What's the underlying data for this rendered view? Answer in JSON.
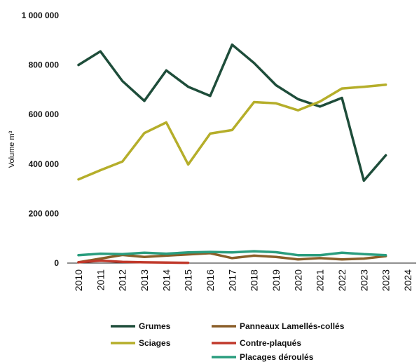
{
  "chart_data": {
    "type": "line",
    "ylabel": "Volume m³",
    "ylim": [
      0,
      1000000
    ],
    "yticks": [
      "0",
      "200 000",
      "400 000",
      "600 000",
      "800 000",
      "1 000 000"
    ],
    "ytick_values": [
      0,
      200000,
      400000,
      600000,
      800000,
      1000000
    ],
    "categories": [
      "2010",
      "2011",
      "2012",
      "2013",
      "2014",
      "2015",
      "2016",
      "2017",
      "2018",
      "2019",
      "2020",
      "2021",
      "2022",
      "2023",
      "2023",
      "2024"
    ],
    "grid": false,
    "legend_placement": "bottom",
    "series": [
      {
        "name": "Grumes",
        "color": "#1e4d3a",
        "values": [
          800000,
          855000,
          735000,
          655000,
          778000,
          712000,
          675000,
          882000,
          808000,
          718000,
          662000,
          632000,
          667000,
          333000,
          435000,
          null
        ]
      },
      {
        "name": "Sciages",
        "color": "#b5ae2a",
        "values": [
          338000,
          375000,
          410000,
          525000,
          568000,
          398000,
          523000,
          537000,
          650000,
          645000,
          617000,
          652000,
          705000,
          712000,
          720000,
          null
        ]
      },
      {
        "name": "Panneaux Lamellés-collés",
        "color": "#8a5e28",
        "values": [
          3000,
          18000,
          33000,
          25000,
          30000,
          35000,
          40000,
          20000,
          30000,
          25000,
          15000,
          20000,
          15000,
          18000,
          28000,
          null
        ]
      },
      {
        "name": "Contre-plaqués",
        "color": "#c0392b",
        "values": [
          3000,
          10000,
          5000,
          3000,
          2000,
          1000,
          null,
          null,
          null,
          null,
          null,
          null,
          null,
          null,
          null,
          null
        ]
      },
      {
        "name": "Placages déroulés",
        "color": "#2a9d7e",
        "values": [
          32000,
          38000,
          36000,
          42000,
          38000,
          43000,
          45000,
          43000,
          48000,
          44000,
          32000,
          32000,
          42000,
          36000,
          32000,
          null
        ]
      }
    ]
  }
}
